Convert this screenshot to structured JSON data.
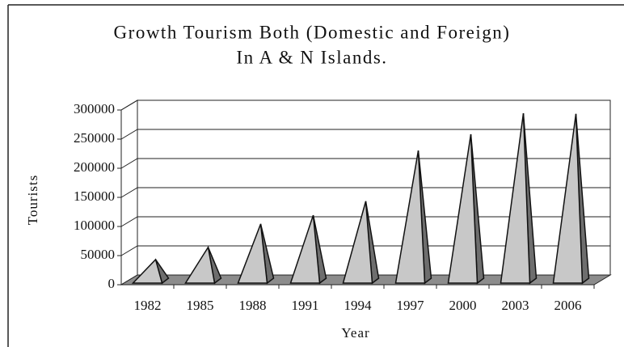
{
  "chart_data": {
    "type": "pyramid",
    "title": "Growth Tourism Both (Domestic and Foreign)",
    "subtitle": "In A & N Islands.",
    "x_label": "Year",
    "y_label": "Tourists",
    "categories": [
      "1982",
      "1985",
      "1988",
      "1991",
      "1994",
      "1997",
      "2000",
      "2003",
      "2006"
    ],
    "values": [
      35000,
      56000,
      96000,
      111000,
      135000,
      222000,
      250000,
      286000,
      285000
    ],
    "color": "#c8c8c8",
    "side_color": "#6e6e6e",
    "floor_color": "#8c8c8c",
    "ylim": [
      0,
      300000
    ],
    "yticks": [
      0,
      50000,
      100000,
      150000,
      200000,
      250000,
      300000
    ],
    "grid": true
  }
}
